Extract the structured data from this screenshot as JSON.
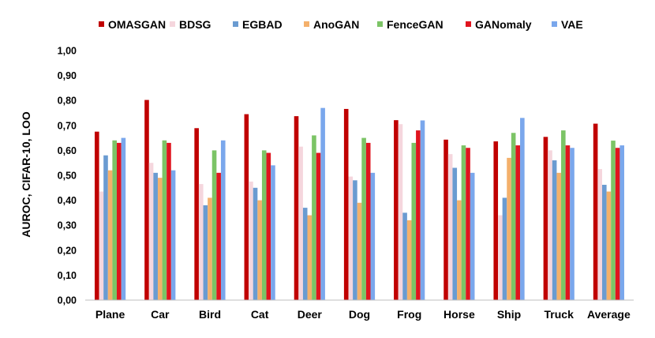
{
  "chart_data": {
    "type": "bar",
    "ylabel": "AUROC, CIFAR-10, LOO",
    "ylim": [
      0,
      1
    ],
    "ytick_step": 0.1,
    "ytick_labels": [
      "0,00",
      "0,10",
      "0,20",
      "0,30",
      "0,40",
      "0,50",
      "0,60",
      "0,70",
      "0,80",
      "0,90",
      "1,00"
    ],
    "grid": false,
    "legend_position": "top",
    "categories": [
      "Plane",
      "Car",
      "Bird",
      "Cat",
      "Deer",
      "Dog",
      "Frog",
      "Horse",
      "Ship",
      "Truck",
      "Average"
    ],
    "series": [
      {
        "name": "OMASGAN",
        "color": "#c00000",
        "values": [
          0.675,
          0.802,
          0.689,
          0.745,
          0.737,
          0.766,
          0.721,
          0.643,
          0.636,
          0.654,
          0.707
        ]
      },
      {
        "name": "BDSG",
        "color": "#f5d6dd",
        "values": [
          0.435,
          0.55,
          0.465,
          0.475,
          0.615,
          0.495,
          0.705,
          0.585,
          0.34,
          0.6,
          0.525
        ]
      },
      {
        "name": "EGBAD",
        "color": "#6a9bd1",
        "values": [
          0.58,
          0.51,
          0.38,
          0.45,
          0.37,
          0.48,
          0.35,
          0.53,
          0.41,
          0.56,
          0.462
        ]
      },
      {
        "name": "AnoGAN",
        "color": "#f4b06b",
        "values": [
          0.52,
          0.49,
          0.41,
          0.4,
          0.34,
          0.39,
          0.32,
          0.4,
          0.57,
          0.51,
          0.435
        ]
      },
      {
        "name": "FenceGAN",
        "color": "#7cc466",
        "values": [
          0.64,
          0.64,
          0.6,
          0.6,
          0.66,
          0.65,
          0.63,
          0.62,
          0.67,
          0.68,
          0.639
        ]
      },
      {
        "name": "GANomaly",
        "color": "#e0141e",
        "values": [
          0.63,
          0.63,
          0.51,
          0.59,
          0.59,
          0.63,
          0.68,
          0.61,
          0.62,
          0.62,
          0.61
        ]
      },
      {
        "name": "VAE",
        "color": "#7aa7ec",
        "values": [
          0.65,
          0.52,
          0.64,
          0.54,
          0.77,
          0.51,
          0.72,
          0.51,
          0.73,
          0.61,
          0.62
        ]
      }
    ]
  }
}
